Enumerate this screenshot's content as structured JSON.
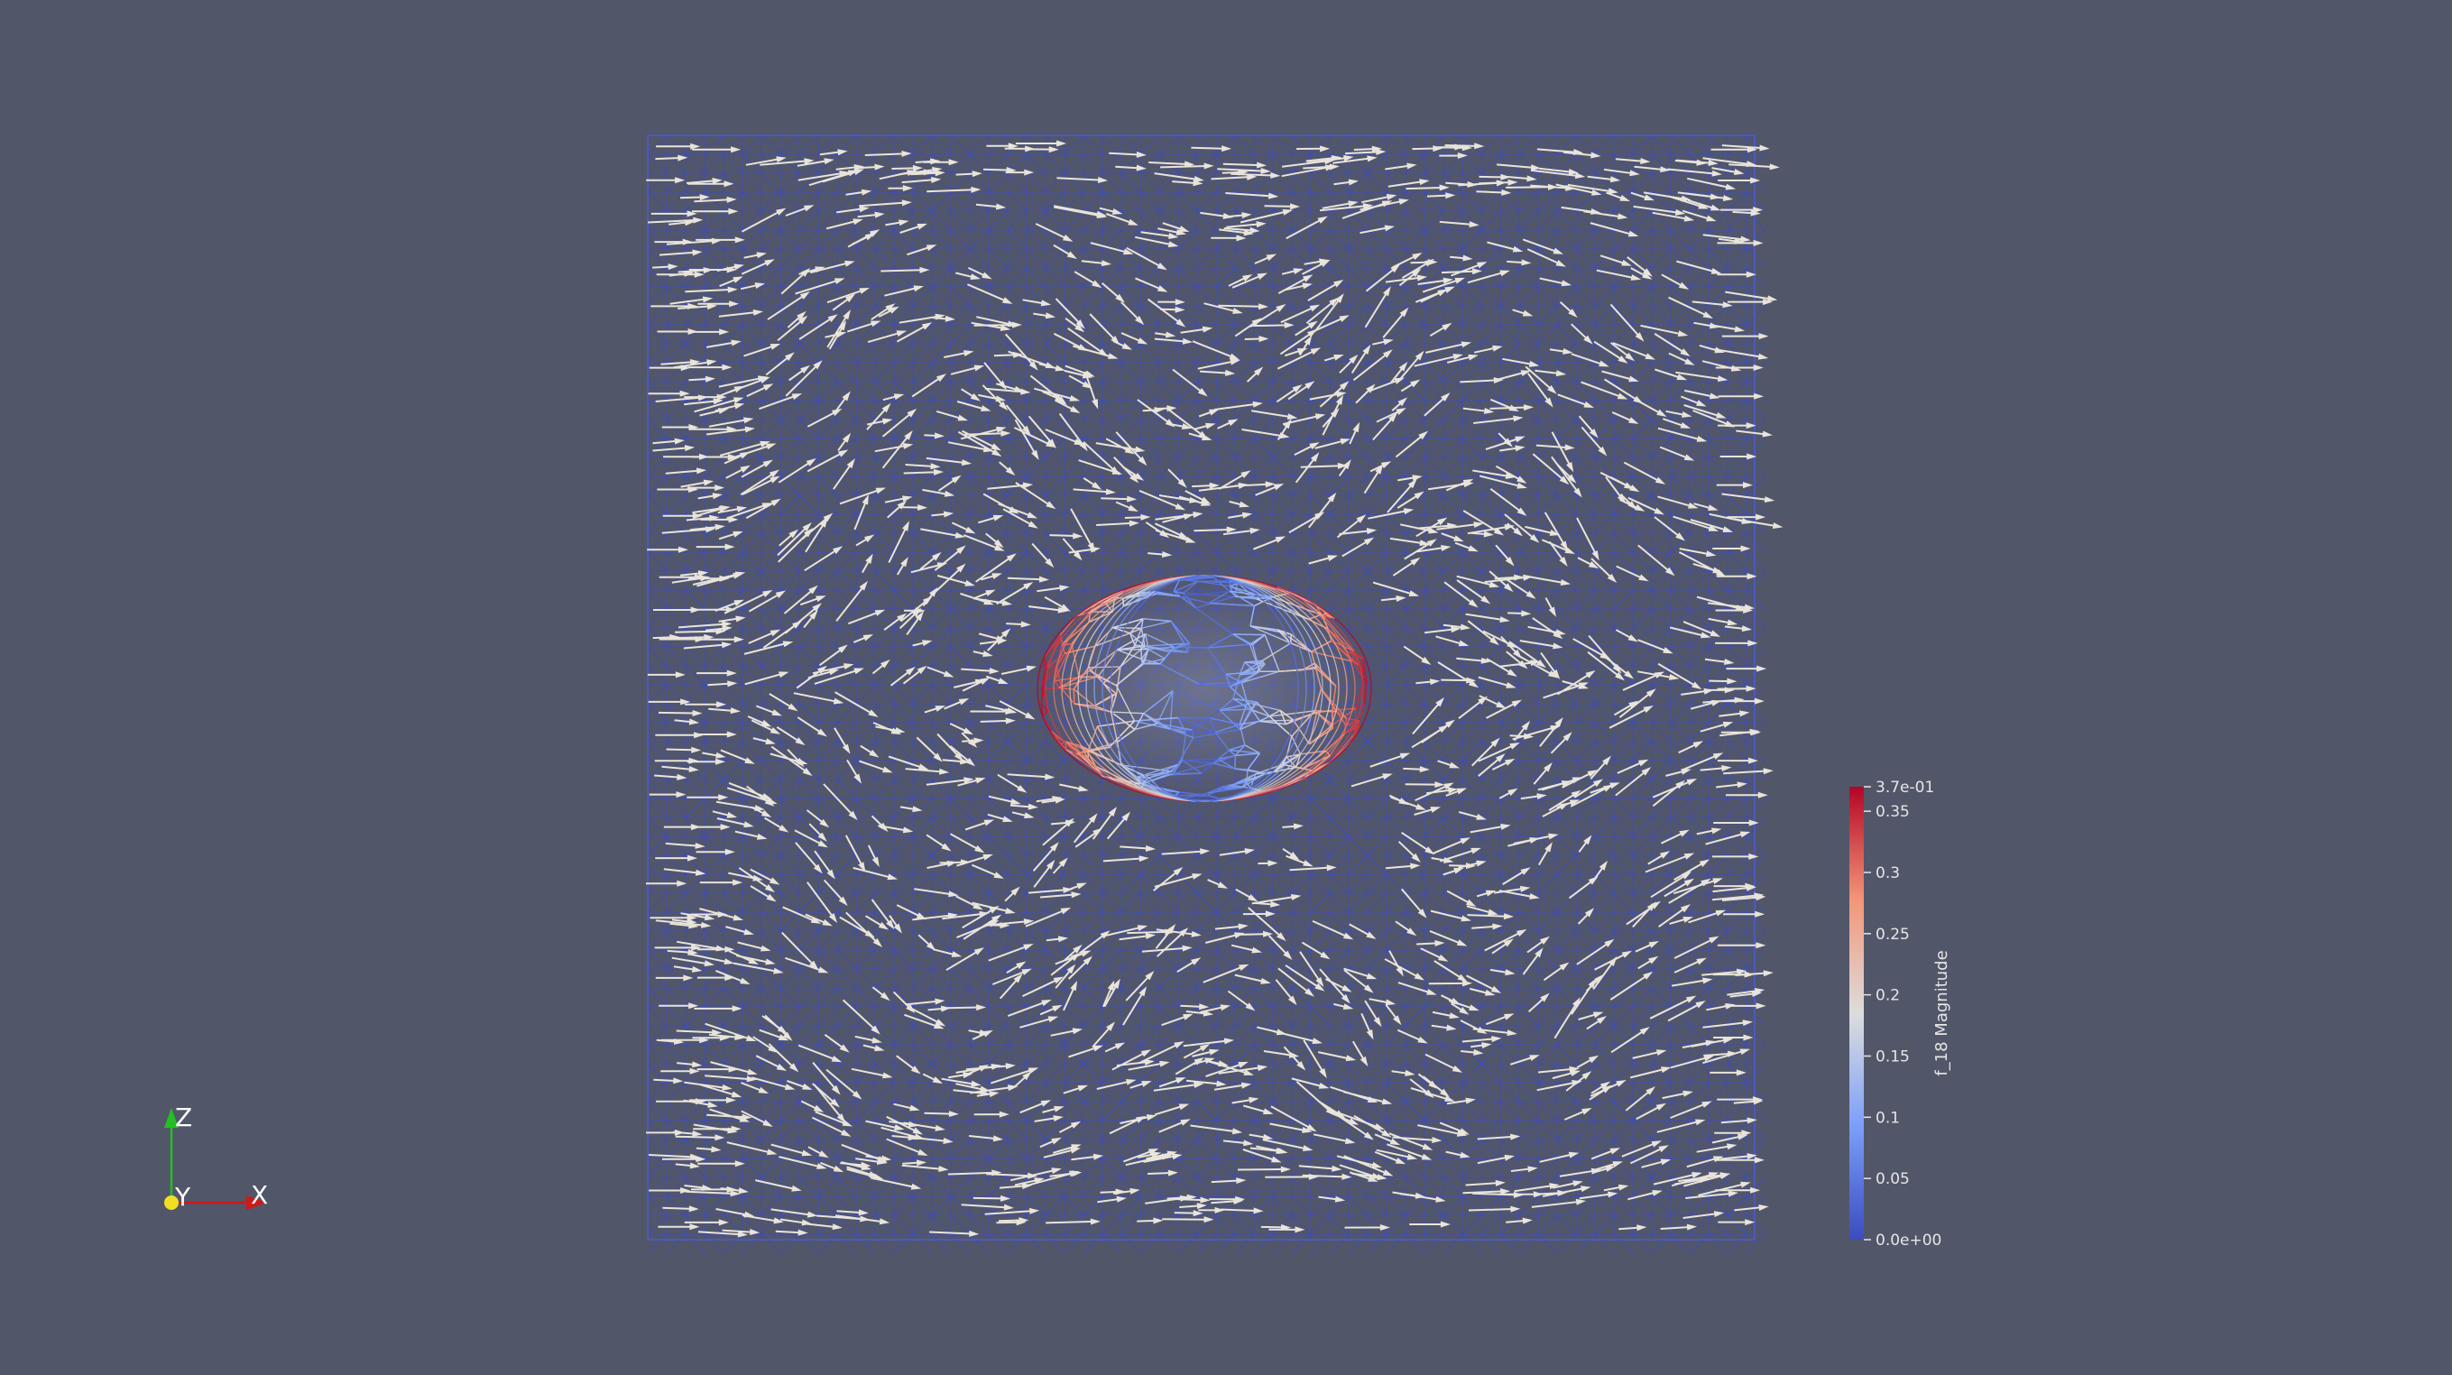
{
  "colors": {
    "background": "#525669",
    "mesh": "#3b4bc8",
    "arrow": "#e8e4da",
    "scale_low": "#3b4cc0",
    "scale_mid": "#dddddd",
    "scale_high": "#b40426"
  },
  "colorbar": {
    "title": "f_18 Magnitude",
    "range": [
      0,
      0.37
    ],
    "labels": [
      {
        "text": "3.7e-01",
        "value": 0.37
      },
      {
        "text": "0.35",
        "value": 0.35
      },
      {
        "text": "0.3",
        "value": 0.3
      },
      {
        "text": "0.25",
        "value": 0.25
      },
      {
        "text": "0.2",
        "value": 0.2
      },
      {
        "text": "0.15",
        "value": 0.15
      },
      {
        "text": "0.1",
        "value": 0.1
      },
      {
        "text": "0.05",
        "value": 0.05
      },
      {
        "text": "0.0e+00",
        "value": 0.0
      }
    ]
  },
  "axes_triad": {
    "z_label": "Z",
    "x_label": "X",
    "y_label": "Y",
    "z_color": "#22c022",
    "x_color": "#d01818",
    "y_color": "#f0e020"
  },
  "scene": {
    "description_icon": "glyph-vector-field",
    "sphere_icon": "wireframe-sphere"
  }
}
